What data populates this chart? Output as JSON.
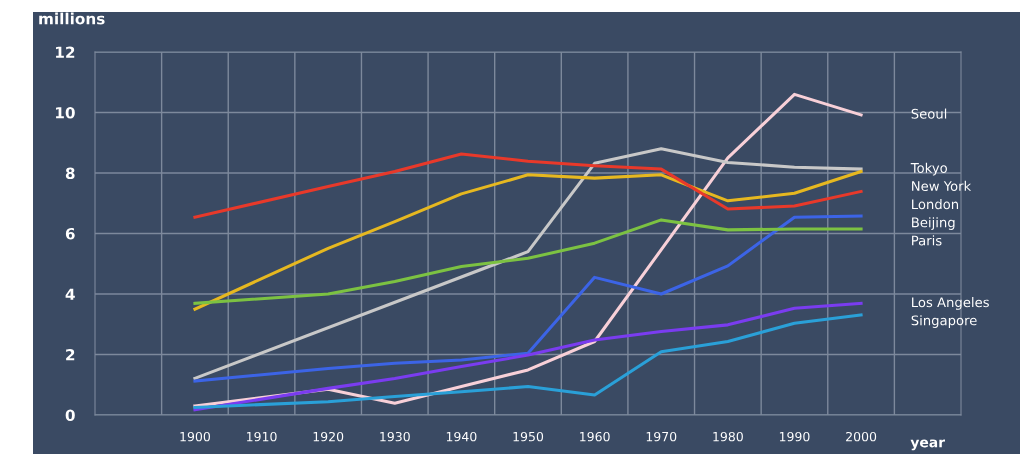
{
  "chart_data": {
    "type": "line",
    "ylabel": "millions",
    "xlabel": "year",
    "x": [
      1900,
      1920,
      1930,
      1940,
      1950,
      1960,
      1970,
      1980,
      1990,
      2000
    ],
    "series": [
      {
        "name": "Seoul",
        "color": "#f8d0d8",
        "x": [
          1900,
          1920,
          1930,
          1940,
          1950,
          1960,
          1980,
          1990,
          2000
        ],
        "values": [
          0.3,
          0.85,
          0.39,
          0.94,
          1.49,
          2.43,
          8.5,
          10.6,
          9.92
        ]
      },
      {
        "name": "Tokyo",
        "color": "#c8c8c8",
        "x": [
          1900,
          1950,
          1960,
          1970,
          1980,
          1990,
          2000
        ],
        "values": [
          1.21,
          5.4,
          8.32,
          8.8,
          8.35,
          8.19,
          8.13
        ]
      },
      {
        "name": "New York",
        "color": "#e6b820",
        "values": [
          3.5,
          5.51,
          6.39,
          7.31,
          7.94,
          7.83,
          7.94,
          7.08,
          7.33,
          8.05
        ]
      },
      {
        "name": "London",
        "color": "#e8392a",
        "values": [
          6.54,
          7.55,
          8.05,
          8.63,
          8.39,
          8.24,
          8.13,
          6.81,
          6.91,
          7.39
        ]
      },
      {
        "name": "Beijing",
        "color": "#3c64e6",
        "values": [
          1.12,
          1.54,
          1.71,
          1.82,
          2.04,
          4.55,
          4.0,
          4.93,
          6.54,
          6.58
        ]
      },
      {
        "name": "Paris",
        "color": "#7cc242",
        "values": [
          3.69,
          4.0,
          4.41,
          4.91,
          5.18,
          5.68,
          6.45,
          6.12,
          6.15,
          6.15
        ]
      },
      {
        "name": "Los Angeles",
        "color": "#7a3cf0",
        "values": [
          0.17,
          0.88,
          1.21,
          1.6,
          1.98,
          2.48,
          2.76,
          2.98,
          3.53,
          3.69
        ]
      },
      {
        "name": "Singapore",
        "color": "#2aa0d8",
        "values": [
          0.25,
          0.44,
          0.61,
          0.77,
          0.94,
          0.66,
          2.09,
          2.43,
          3.03,
          3.31
        ]
      }
    ],
    "xlim": [
      1885,
      2015
    ],
    "ylim": [
      0,
      12
    ],
    "xticks": [
      {
        "value": 1895,
        "label": null
      },
      1900,
      {
        "value": 1905,
        "label": null
      },
      1910,
      {
        "value": 1915,
        "label": null
      },
      1920,
      {
        "value": 1925,
        "label": null
      },
      1930,
      {
        "value": 1935,
        "label": null
      },
      1940,
      {
        "value": 1945,
        "label": null
      },
      1950,
      {
        "value": 1955,
        "label": null
      },
      1960,
      {
        "value": 1965,
        "label": null
      },
      1970,
      {
        "value": 1975,
        "label": null
      },
      1980,
      {
        "value": 1985,
        "label": null
      },
      1990,
      {
        "value": 1995,
        "label": null
      },
      2000,
      {
        "value": 2005,
        "label": null
      }
    ],
    "yticks": [
      0,
      2,
      4,
      6,
      8,
      10,
      12
    ],
    "grid": true,
    "legend": false,
    "marker": "none",
    "line_style": "solid"
  }
}
